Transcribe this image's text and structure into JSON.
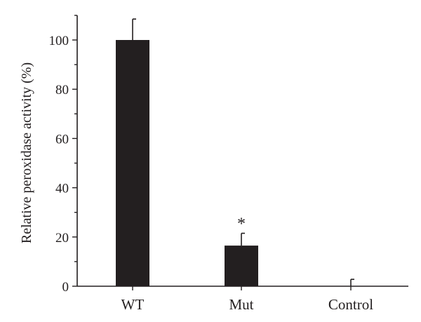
{
  "chart_data": {
    "type": "bar",
    "title": "",
    "xlabel": "",
    "ylabel": "Relative peroxidase activity (%)",
    "categories": [
      "WT",
      "Mut",
      "Control"
    ],
    "values": [
      100,
      16.5,
      0
    ],
    "errors": [
      8.5,
      5,
      2.8
    ],
    "annotations": [
      {
        "category": "Mut",
        "text": "*"
      }
    ],
    "ylim": [
      0,
      110
    ],
    "yticks": [
      0,
      20,
      40,
      60,
      80,
      100
    ],
    "grid": false,
    "legend": "none",
    "bar_color": "#231f20"
  }
}
